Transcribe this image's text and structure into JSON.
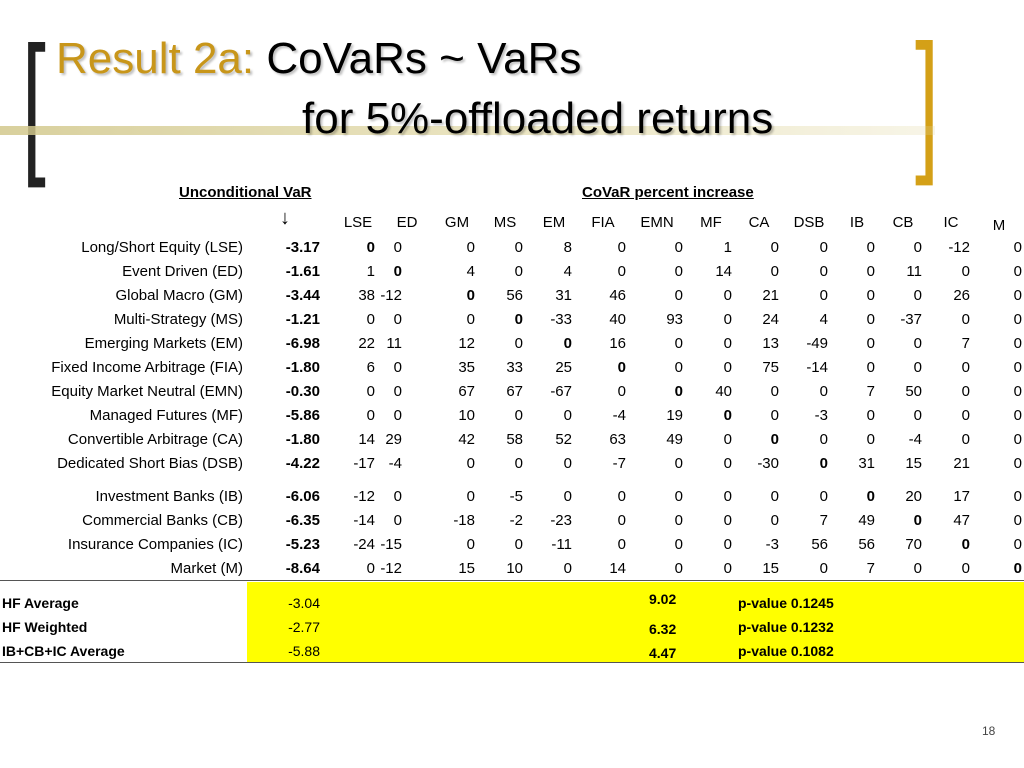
{
  "title": {
    "accent": "Result 2a:",
    "line1": "CoVaRs ~ VaRs",
    "line2": "for 5%-offloaded returns"
  },
  "headers": {
    "unconditional": "Unconditional VaR",
    "covar": "CoVaR percent increase",
    "arrow": "↓"
  },
  "columns": [
    "LSE",
    "ED",
    "GM",
    "MS",
    "EM",
    "FIA",
    "EMN",
    "MF",
    "CA",
    "DSB",
    "IB",
    "CB",
    "IC",
    "M"
  ],
  "rows": [
    {
      "label": "Long/Short Equity (LSE)",
      "var": "-3.17",
      "vals": [
        "0",
        "0",
        "0",
        "0",
        "8",
        "0",
        "0",
        "1",
        "0",
        "0",
        "0",
        "0",
        "-12",
        "0"
      ],
      "bold": 0
    },
    {
      "label": "Event Driven (ED)",
      "var": "-1.61",
      "vals": [
        "1",
        "0",
        "4",
        "0",
        "4",
        "0",
        "0",
        "14",
        "0",
        "0",
        "0",
        "11",
        "0",
        "0"
      ],
      "bold": 1
    },
    {
      "label": "Global Macro (GM)",
      "var": "-3.44",
      "vals": [
        "38",
        "-12",
        "0",
        "56",
        "31",
        "46",
        "0",
        "0",
        "21",
        "0",
        "0",
        "0",
        "26",
        "0"
      ],
      "bold": 2
    },
    {
      "label": "Multi-Strategy (MS)",
      "var": "-1.21",
      "vals": [
        "0",
        "0",
        "0",
        "0",
        "-33",
        "40",
        "93",
        "0",
        "24",
        "4",
        "0",
        "-37",
        "0",
        "0"
      ],
      "bold": 3
    },
    {
      "label": "Emerging Markets (EM)",
      "var": "-6.98",
      "vals": [
        "22",
        "11",
        "12",
        "0",
        "0",
        "16",
        "0",
        "0",
        "13",
        "-49",
        "0",
        "0",
        "7",
        "0"
      ],
      "bold": 4
    },
    {
      "label": "Fixed Income Arbitrage (FIA)",
      "var": "-1.80",
      "vals": [
        "6",
        "0",
        "35",
        "33",
        "25",
        "0",
        "0",
        "0",
        "75",
        "-14",
        "0",
        "0",
        "0",
        "0"
      ],
      "bold": 5
    },
    {
      "label": "Equity Market Neutral (EMN)",
      "var": "-0.30",
      "vals": [
        "0",
        "0",
        "67",
        "67",
        "-67",
        "0",
        "0",
        "40",
        "0",
        "0",
        "7",
        "50",
        "0",
        "0"
      ],
      "bold": 6
    },
    {
      "label": "Managed Futures (MF)",
      "var": "-5.86",
      "vals": [
        "0",
        "0",
        "10",
        "0",
        "0",
        "-4",
        "19",
        "0",
        "0",
        "-3",
        "0",
        "0",
        "0",
        "0"
      ],
      "bold": 7
    },
    {
      "label": "Convertible Arbitrage (CA)",
      "var": "-1.80",
      "vals": [
        "14",
        "29",
        "42",
        "58",
        "52",
        "63",
        "49",
        "0",
        "0",
        "0",
        "0",
        "-4",
        "0",
        "0"
      ],
      "bold": 8
    },
    {
      "label": "Dedicated Short Bias (DSB)",
      "var": "-4.22",
      "vals": [
        "-17",
        "-4",
        "0",
        "0",
        "0",
        "-7",
        "0",
        "0",
        "-30",
        "0",
        "31",
        "15",
        "21",
        "0"
      ],
      "bold": 9
    },
    {
      "label": "Investment Banks (IB)",
      "var": "-6.06",
      "vals": [
        "-12",
        "0",
        "0",
        "-5",
        "0",
        "0",
        "0",
        "0",
        "0",
        "0",
        "0",
        "20",
        "17",
        "0"
      ],
      "bold": 10
    },
    {
      "label": "Commercial Banks (CB)",
      "var": "-6.35",
      "vals": [
        "-14",
        "0",
        "-18",
        "-2",
        "-23",
        "0",
        "0",
        "0",
        "0",
        "7",
        "49",
        "0",
        "47",
        "0"
      ],
      "bold": 11
    },
    {
      "label": "Insurance Companies (IC)",
      "var": "-5.23",
      "vals": [
        "-24",
        "-15",
        "0",
        "0",
        "-11",
        "0",
        "0",
        "0",
        "-3",
        "56",
        "56",
        "70",
        "0",
        "0"
      ],
      "bold": 12
    },
    {
      "label": "Market (M)",
      "var": "-8.64",
      "vals": [
        "0",
        "-12",
        "15",
        "10",
        "0",
        "14",
        "0",
        "0",
        "15",
        "0",
        "7",
        "0",
        "0",
        "0"
      ],
      "bold": 13
    }
  ],
  "averages": [
    {
      "label": "HF Average",
      "var": "-3.04",
      "pct": "9.02",
      "pvalue": "p-value 0.1245"
    },
    {
      "label": "HF Weighted",
      "var": "-2.77",
      "pct": "6.32",
      "pvalue": "p-value 0.1232"
    },
    {
      "label": "IB+CB+IC Average",
      "var": "-5.88",
      "pct": "4.47",
      "pvalue": "p-value 0.1082"
    }
  ],
  "page_number": "18",
  "colors": {
    "accent": "#C8961A",
    "highlight": "#FFFF00",
    "bracket_right": "#D4A017"
  }
}
